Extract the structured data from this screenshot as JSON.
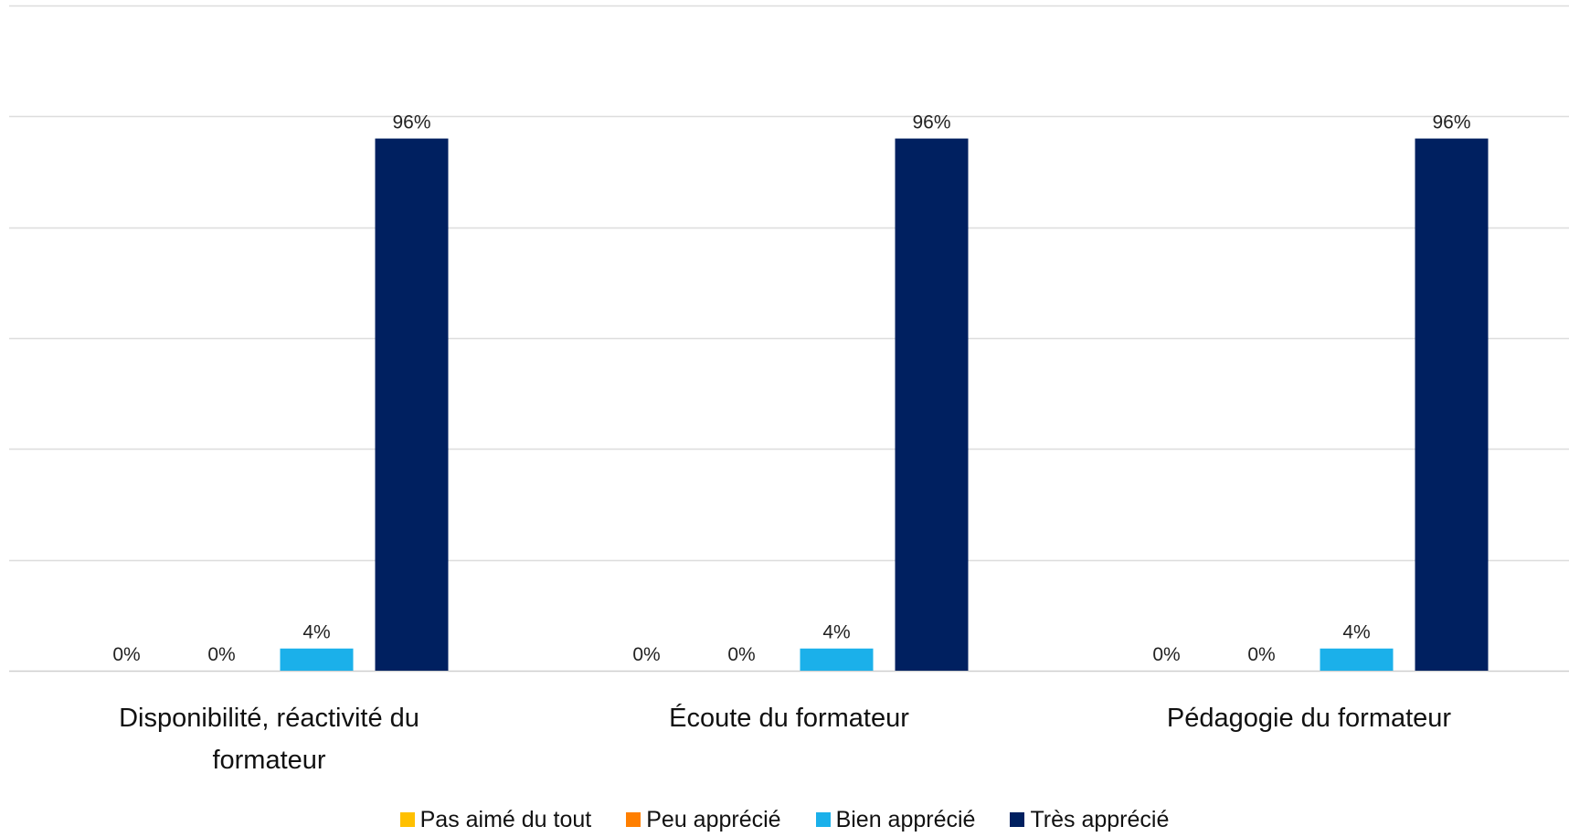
{
  "chart_data": {
    "type": "bar",
    "title": "",
    "xlabel": "",
    "ylabel": "",
    "ylim": [
      0,
      1.2
    ],
    "grid": true,
    "legend_position": "bottom",
    "categories": [
      [
        "Disponibilité, réactivité du",
        "formateur"
      ],
      [
        "Écoute du formateur"
      ],
      [
        "Pédagogie du formateur"
      ]
    ],
    "series": [
      {
        "name": "Pas aimé du tout",
        "color": "#FFC000",
        "values": [
          0,
          0,
          0
        ],
        "labels": [
          "0%",
          "0%",
          "0%"
        ]
      },
      {
        "name": "Peu apprécié",
        "color": "#FF7F00",
        "values": [
          0,
          0,
          0
        ],
        "labels": [
          "0%",
          "0%",
          "0%"
        ]
      },
      {
        "name": "Bien apprécié",
        "color": "#1BB0EA",
        "values": [
          0.04,
          0.04,
          0.04
        ],
        "labels": [
          "4%",
          "4%",
          "4%"
        ]
      },
      {
        "name": "Très apprécié",
        "color": "#002060",
        "values": [
          0.96,
          0.96,
          0.96
        ],
        "labels": [
          "96%",
          "96%",
          "96%"
        ]
      }
    ]
  }
}
